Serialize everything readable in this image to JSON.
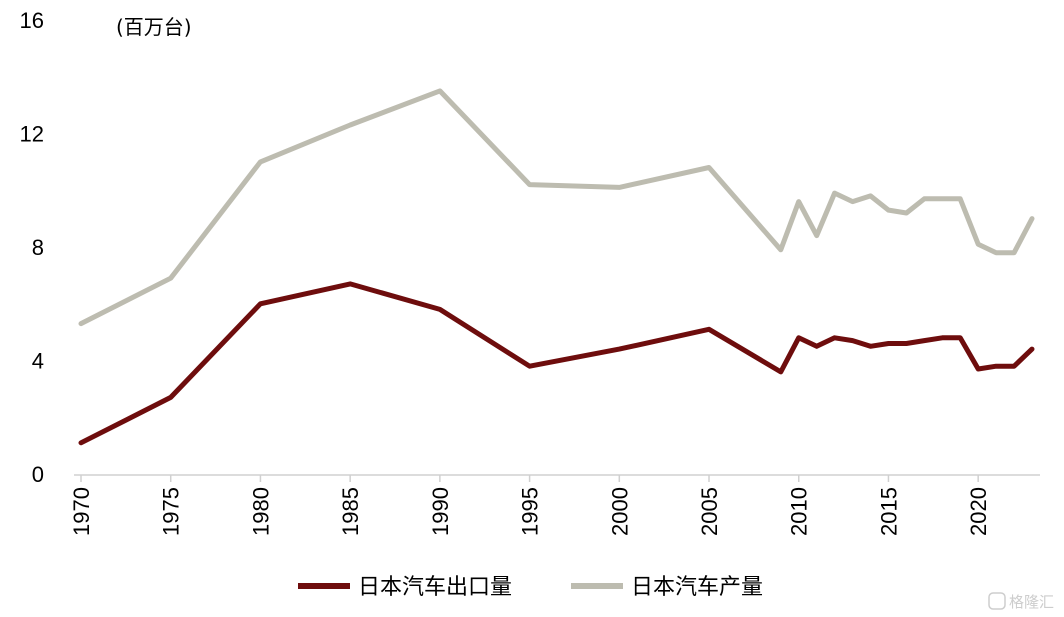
{
  "chart_data": {
    "type": "line",
    "unit_label": "(百万台)",
    "ylim": [
      0,
      16
    ],
    "yticks": [
      0,
      4,
      8,
      12,
      16
    ],
    "xticks": [
      1970,
      1975,
      1980,
      1985,
      1990,
      1995,
      2000,
      2005,
      2010,
      2015,
      2020
    ],
    "xlim": [
      1970,
      2023
    ],
    "grid": false,
    "legend_position": "bottom",
    "series": [
      {
        "name": "日本汽车出口量",
        "color": "#6e0d0d",
        "x": [
          1970,
          1975,
          1980,
          1985,
          1990,
          1995,
          2000,
          2005,
          2009,
          2010,
          2011,
          2012,
          2013,
          2014,
          2015,
          2016,
          2017,
          2018,
          2019,
          2020,
          2021,
          2022,
          2023
        ],
        "values": [
          1.1,
          2.7,
          6.0,
          6.7,
          5.8,
          3.8,
          4.4,
          5.1,
          3.6,
          4.8,
          4.5,
          4.8,
          4.7,
          4.5,
          4.6,
          4.6,
          4.7,
          4.8,
          4.8,
          3.7,
          3.8,
          3.8,
          4.4
        ]
      },
      {
        "name": "日本汽车产量",
        "color": "#bdbcb0",
        "x": [
          1970,
          1975,
          1980,
          1985,
          1990,
          1995,
          2000,
          2005,
          2009,
          2010,
          2011,
          2012,
          2013,
          2014,
          2015,
          2016,
          2017,
          2018,
          2019,
          2020,
          2021,
          2022,
          2023
        ],
        "values": [
          5.3,
          6.9,
          11.0,
          12.3,
          13.5,
          10.2,
          10.1,
          10.8,
          7.9,
          9.6,
          8.4,
          9.9,
          9.6,
          9.8,
          9.3,
          9.2,
          9.7,
          9.7,
          9.7,
          8.1,
          7.8,
          7.8,
          9.0
        ]
      }
    ]
  },
  "watermark": "格隆汇"
}
